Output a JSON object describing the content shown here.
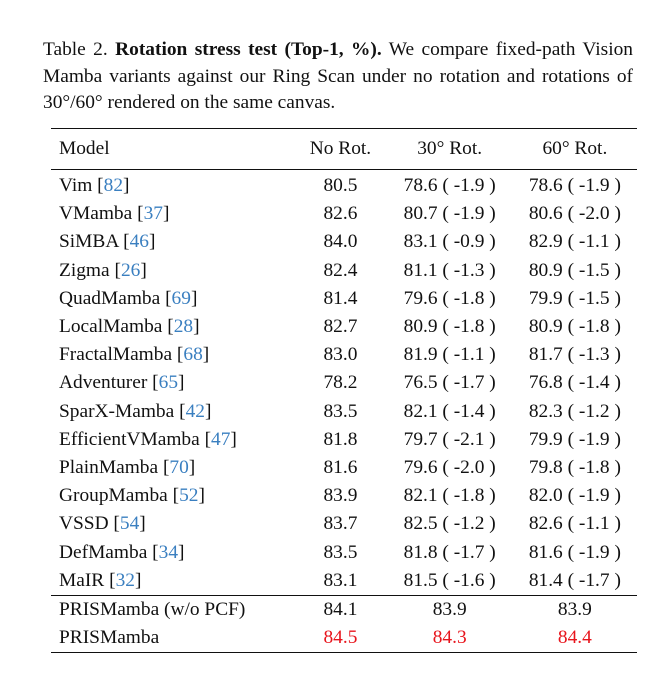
{
  "caption": {
    "label": "Table 2.",
    "title": "Rotation stress test (Top-1, %).",
    "text": "We compare fixed-path Vision Mamba variants against our Ring Scan under no rotation and rotations of 30°/60° rendered on the same canvas."
  },
  "table": {
    "headers": [
      "Model",
      "No Rot.",
      "30° Rot.",
      "60° Rot."
    ],
    "rows": [
      {
        "model": "Vim",
        "cite": "82",
        "no_rot": "80.5",
        "rot30": "78.6  ( -1.9 )",
        "rot60": "78.6  ( -1.9 )"
      },
      {
        "model": "VMamba",
        "cite": "37",
        "no_rot": "82.6",
        "rot30": "80.7  ( -1.9 )",
        "rot60": "80.6  ( -2.0 )"
      },
      {
        "model": "SiMBA",
        "cite": "46",
        "no_rot": "84.0",
        "rot30": "83.1 ( -0.9 )",
        "rot60": "82.9 ( -1.1 )"
      },
      {
        "model": "Zigma",
        "cite": "26",
        "no_rot": "82.4",
        "rot30": "81.1 ( -1.3 )",
        "rot60": "80.9 ( -1.5 )"
      },
      {
        "model": "QuadMamba",
        "cite": "69",
        "no_rot": "81.4",
        "rot30": "79.6 ( -1.8 )",
        "rot60": "79.9 ( -1.5 )"
      },
      {
        "model": "LocalMamba",
        "cite": "28",
        "no_rot": "82.7",
        "rot30": "80.9  ( -1.8 )",
        "rot60": "80.9  ( -1.8 )"
      },
      {
        "model": "FractalMamba",
        "cite": "68",
        "no_rot": "83.0",
        "rot30": "81.9 ( -1.1 )",
        "rot60": "81.7 ( -1.3 )"
      },
      {
        "model": "Adventurer",
        "cite": "65",
        "no_rot": "78.2",
        "rot30": "76.5 ( -1.7 )",
        "rot60": "76.8 ( -1.4 )"
      },
      {
        "model": "SparX-Mamba",
        "cite": "42",
        "no_rot": "83.5",
        "rot30": "82.1 ( -1.4 )",
        "rot60": "82.3 ( -1.2 )"
      },
      {
        "model": "EfficientVMamba",
        "cite": "47",
        "no_rot": "81.8",
        "rot30": "79.7 ( -2.1 )",
        "rot60": "79.9 ( -1.9 )"
      },
      {
        "model": "PlainMamba",
        "cite": "70",
        "no_rot": "81.6",
        "rot30": "79.6 ( -2.0 )",
        "rot60": "79.8 ( -1.8 )"
      },
      {
        "model": "GroupMamba",
        "cite": "52",
        "no_rot": "83.9",
        "rot30": "82.1 ( -1.8 )",
        "rot60": "82.0 ( -1.9 )"
      },
      {
        "model": "VSSD",
        "cite": "54",
        "no_rot": "83.7",
        "rot30": "82.5 ( -1.2 )",
        "rot60": "82.6 ( -1.1 )"
      },
      {
        "model": "DefMamba",
        "cite": "34",
        "no_rot": "83.5",
        "rot30": "81.8 ( -1.7 )",
        "rot60": "81.6 ( -1.9 )"
      },
      {
        "model": "MaIR",
        "cite": "32",
        "no_rot": "83.1",
        "rot30": "81.5 ( -1.6 )",
        "rot60": "81.4 ( -1.7 )"
      }
    ],
    "ours": [
      {
        "model": "PRISMamba (w/o PCF)",
        "no_rot": "84.1",
        "rot30": "83.9",
        "rot60": "83.9"
      },
      {
        "model": "PRISMamba",
        "no_rot": "84.5",
        "rot30": "84.3",
        "rot60": "84.4"
      }
    ]
  },
  "colors": {
    "citation": "#3a7fc0",
    "best": "#e8141c"
  }
}
